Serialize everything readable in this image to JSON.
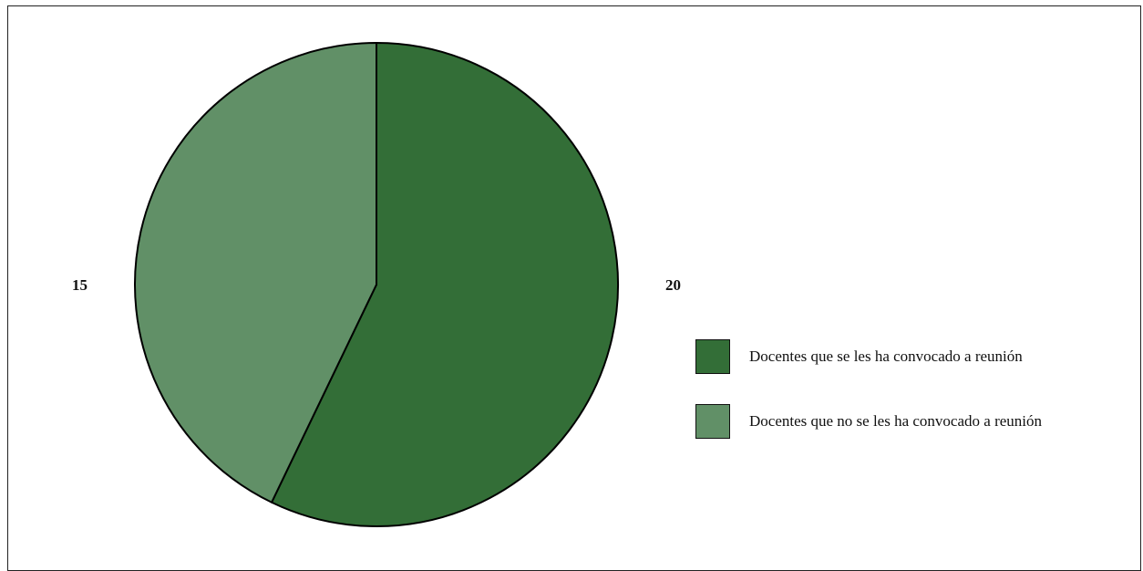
{
  "chart_data": {
    "type": "pie",
    "categories": [
      "Docentes que se les ha convocado a reunión",
      "Docentes que no se les ha convocado a reunión"
    ],
    "values": [
      20,
      15
    ],
    "colors": [
      "#336e37",
      "#619067"
    ],
    "legend_position": "right",
    "title": ""
  },
  "legend": {
    "items": [
      {
        "label": "Docentes que se les ha convocado a reunión",
        "color": "#336e37"
      },
      {
        "label": "Docentes que no se les ha convocado a reunión",
        "color": "#619067"
      }
    ]
  }
}
